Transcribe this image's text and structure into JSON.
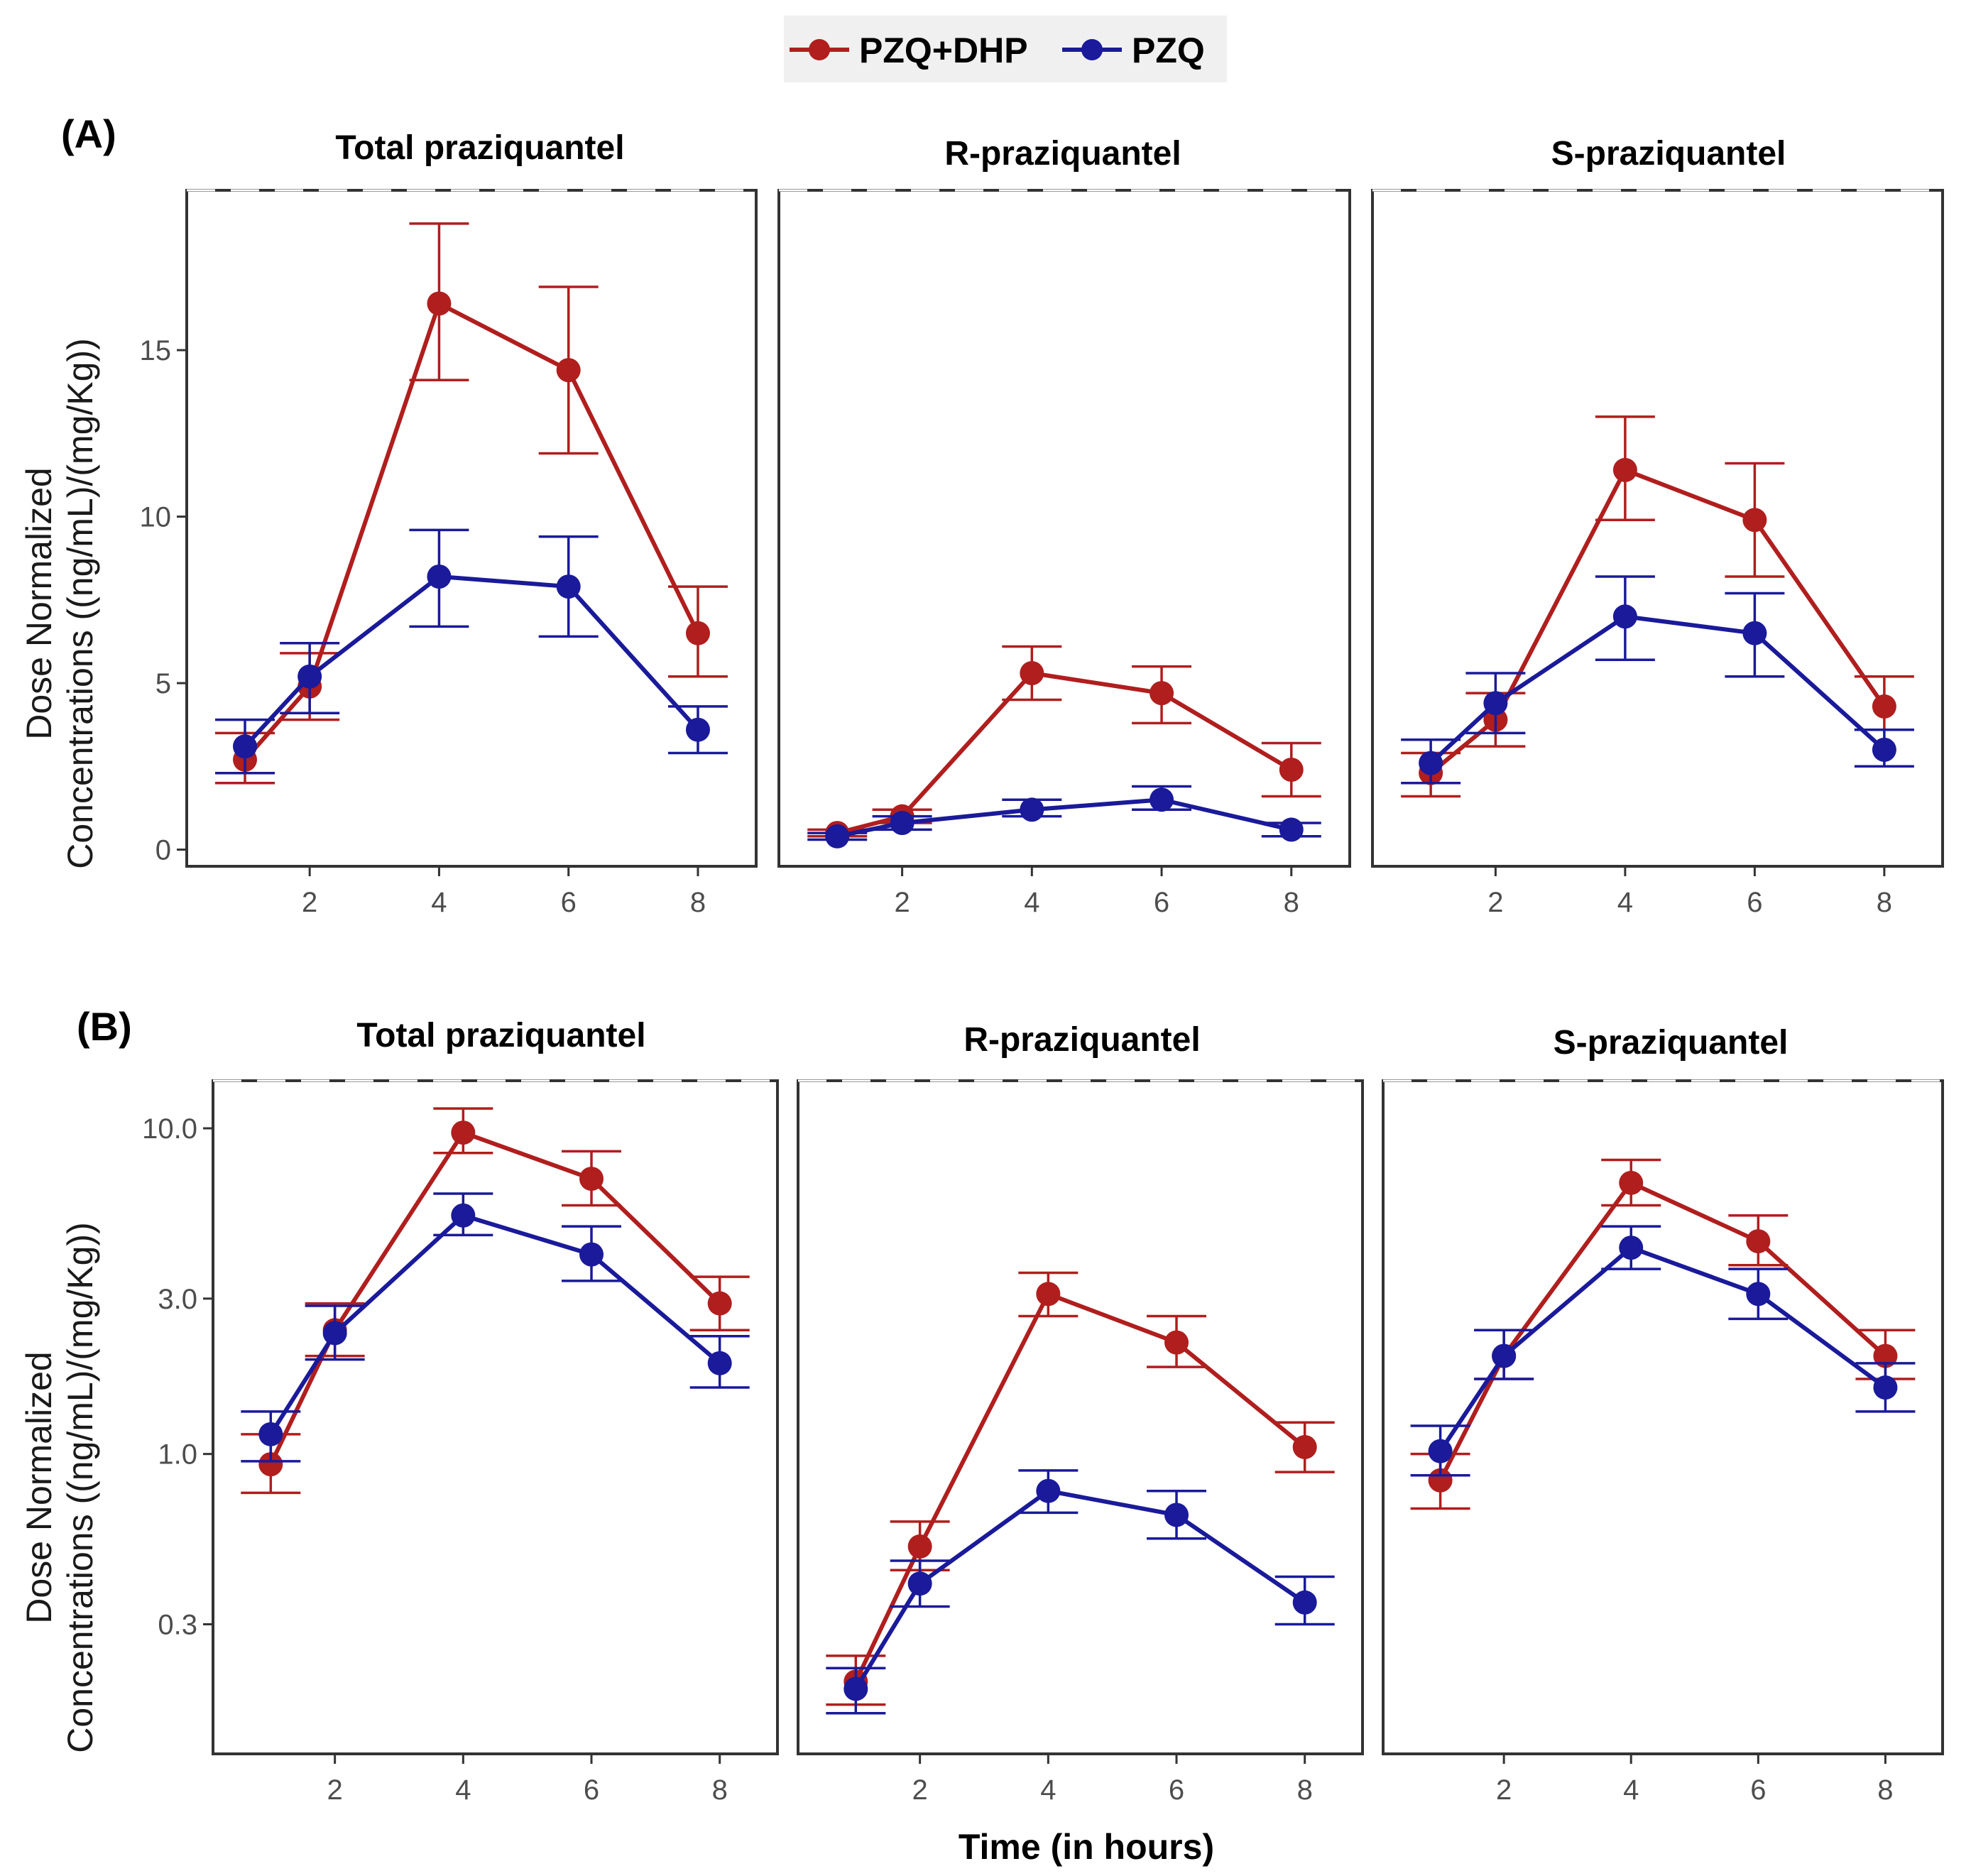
{
  "legend": [
    {
      "name": "PZQ+DHP",
      "color": "#b01e1e"
    },
    {
      "name": "PZQ",
      "color": "#1a1a9a"
    }
  ],
  "rows": [
    {
      "label": "(A)",
      "ylabel_line1": "Dose Normalized",
      "ylabel_line2": "Concentrations ((ng/mL)/(mg/Kg))"
    },
    {
      "label": "(B)",
      "ylabel_line1": "Dose Normalized",
      "ylabel_line2": "Concentrations ((ng/mL)/(mg/Kg))"
    }
  ],
  "xaxis_title": "Time (in hours)",
  "chart_data": [
    {
      "type": "line",
      "row": "A",
      "title": "Total praziquantel",
      "scale": "linear",
      "xlabel": "Time (in hours)",
      "ylabel": "Dose Normalized Concentrations ((ng/mL)/(mg/Kg))",
      "x": [
        1,
        2,
        4,
        6,
        8
      ],
      "xlim": [
        0.1,
        8.9
      ],
      "xticks": [
        2,
        4,
        6,
        8
      ],
      "ylim": [
        -0.5,
        19.8
      ],
      "yticks": [
        0,
        5,
        10,
        15
      ],
      "ytick_labels": [
        "0",
        "5",
        "10",
        "15"
      ],
      "series": [
        {
          "name": "PZQ+DHP",
          "values": [
            2.7,
            4.9,
            16.4,
            14.4,
            6.5
          ],
          "err_low": [
            2.0,
            3.9,
            14.1,
            11.9,
            5.2
          ],
          "err_high": [
            3.5,
            5.9,
            18.8,
            16.9,
            7.9
          ]
        },
        {
          "name": "PZQ",
          "values": [
            3.1,
            5.2,
            8.2,
            7.9,
            3.6
          ],
          "err_low": [
            2.3,
            4.1,
            6.7,
            6.4,
            2.9
          ],
          "err_high": [
            3.9,
            6.2,
            9.6,
            9.4,
            4.3
          ]
        }
      ]
    },
    {
      "type": "line",
      "row": "A",
      "title": "R-praziquantel",
      "scale": "linear",
      "xlabel": "Time (in hours)",
      "ylabel": "",
      "x": [
        1,
        2,
        4,
        6,
        8
      ],
      "xlim": [
        0.1,
        8.9
      ],
      "xticks": [
        2,
        4,
        6,
        8
      ],
      "ylim": [
        -0.5,
        19.8
      ],
      "yticks": [],
      "ytick_labels": [],
      "series": [
        {
          "name": "PZQ+DHP",
          "values": [
            0.5,
            1.0,
            5.3,
            4.7,
            2.4
          ],
          "err_low": [
            0.4,
            0.8,
            4.5,
            3.8,
            1.6
          ],
          "err_high": [
            0.6,
            1.2,
            6.1,
            5.5,
            3.2
          ]
        },
        {
          "name": "PZQ",
          "values": [
            0.4,
            0.8,
            1.2,
            1.5,
            0.6
          ],
          "err_low": [
            0.3,
            0.6,
            1.0,
            1.2,
            0.4
          ],
          "err_high": [
            0.5,
            1.0,
            1.5,
            1.9,
            0.8
          ]
        }
      ]
    },
    {
      "type": "line",
      "row": "A",
      "title": "S-praziquantel",
      "scale": "linear",
      "xlabel": "Time (in hours)",
      "ylabel": "",
      "x": [
        1,
        2,
        4,
        6,
        8
      ],
      "xlim": [
        0.1,
        8.9
      ],
      "xticks": [
        2,
        4,
        6,
        8
      ],
      "ylim": [
        -0.5,
        19.8
      ],
      "yticks": [],
      "ytick_labels": [],
      "series": [
        {
          "name": "PZQ+DHP",
          "values": [
            2.3,
            3.9,
            11.4,
            9.9,
            4.3
          ],
          "err_low": [
            1.6,
            3.1,
            9.9,
            8.2,
            3.6
          ],
          "err_high": [
            2.9,
            4.7,
            13.0,
            11.6,
            5.2
          ]
        },
        {
          "name": "PZQ",
          "values": [
            2.6,
            4.4,
            7.0,
            6.5,
            3.0
          ],
          "err_low": [
            2.0,
            3.5,
            5.7,
            5.2,
            2.5
          ],
          "err_high": [
            3.3,
            5.3,
            8.2,
            7.7,
            3.6
          ]
        }
      ]
    },
    {
      "type": "line",
      "row": "B",
      "title": "Total praziquantel",
      "scale": "log",
      "xlabel": "Time (in hours)",
      "ylabel": "Dose Normalized Concentrations ((ng/mL)/(mg/Kg))",
      "x": [
        1,
        2,
        4,
        6,
        8
      ],
      "xlim": [
        0.1,
        8.9
      ],
      "xticks": [
        2,
        4,
        6,
        8
      ],
      "ylim": [
        0.12,
        14.0
      ],
      "yticks": [
        0.3,
        1.0,
        3.0,
        10.0
      ],
      "ytick_labels": [
        "0.3",
        "1.0",
        "3.0",
        "10.0"
      ],
      "series": [
        {
          "name": "PZQ+DHP",
          "values": [
            0.93,
            2.4,
            9.7,
            7.0,
            2.9
          ],
          "err_low": [
            0.76,
            2.0,
            8.4,
            5.8,
            2.4
          ],
          "err_high": [
            1.15,
            2.9,
            11.5,
            8.5,
            3.5
          ]
        },
        {
          "name": "PZQ",
          "values": [
            1.15,
            2.35,
            5.4,
            4.1,
            1.9
          ],
          "err_low": [
            0.95,
            1.95,
            4.7,
            3.4,
            1.6
          ],
          "err_high": [
            1.35,
            2.85,
            6.3,
            5.0,
            2.3
          ]
        }
      ]
    },
    {
      "type": "line",
      "row": "B",
      "title": "R-praziquantel",
      "scale": "log",
      "xlabel": "Time (in hours)",
      "ylabel": "",
      "x": [
        1,
        2,
        4,
        6,
        8
      ],
      "xlim": [
        0.1,
        8.9
      ],
      "xticks": [
        2,
        4,
        6,
        8
      ],
      "ylim": [
        0.12,
        14.0
      ],
      "yticks": [],
      "ytick_labels": [],
      "series": [
        {
          "name": "PZQ+DHP",
          "values": [
            0.2,
            0.52,
            3.1,
            2.2,
            1.05
          ],
          "err_low": [
            0.17,
            0.44,
            2.65,
            1.85,
            0.88
          ],
          "err_high": [
            0.24,
            0.62,
            3.6,
            2.65,
            1.25
          ]
        },
        {
          "name": "PZQ",
          "values": [
            0.19,
            0.4,
            0.77,
            0.65,
            0.35
          ],
          "err_low": [
            0.16,
            0.34,
            0.66,
            0.55,
            0.3
          ],
          "err_high": [
            0.22,
            0.47,
            0.89,
            0.77,
            0.42
          ]
        }
      ]
    },
    {
      "type": "line",
      "row": "B",
      "title": "S-praziquantel",
      "scale": "log",
      "xlabel": "Time (in hours)",
      "ylabel": "",
      "x": [
        1,
        2,
        4,
        6,
        8
      ],
      "xlim": [
        0.1,
        8.9
      ],
      "xticks": [
        2,
        4,
        6,
        8
      ],
      "ylim": [
        0.12,
        14.0
      ],
      "yticks": [],
      "ytick_labels": [],
      "series": [
        {
          "name": "PZQ+DHP",
          "values": [
            0.83,
            2.0,
            6.8,
            4.5,
            2.0
          ],
          "err_low": [
            0.68,
            1.7,
            5.8,
            3.8,
            1.7
          ],
          "err_high": [
            1.0,
            2.4,
            8.0,
            5.4,
            2.4
          ]
        },
        {
          "name": "PZQ",
          "values": [
            1.02,
            2.0,
            4.3,
            3.1,
            1.6
          ],
          "err_low": [
            0.86,
            1.7,
            3.7,
            2.6,
            1.35
          ],
          "err_high": [
            1.22,
            2.4,
            5.0,
            3.7,
            1.9
          ]
        }
      ]
    }
  ]
}
